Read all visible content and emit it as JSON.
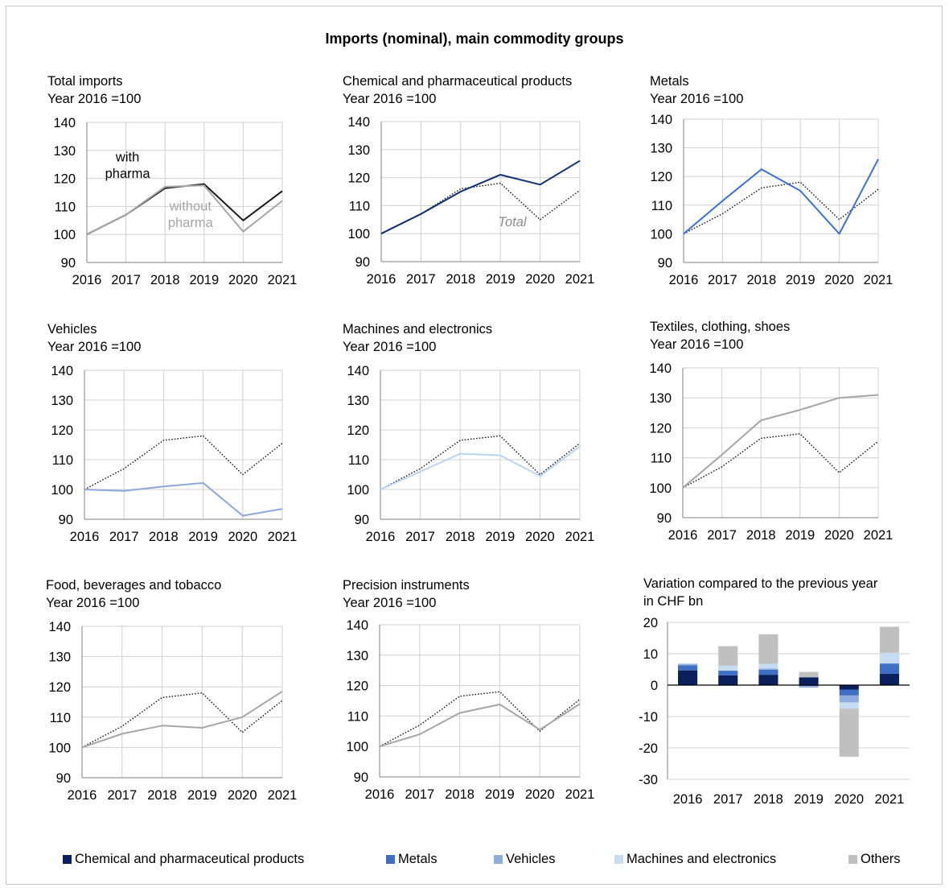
{
  "title": "Imports (nominal), main commodity groups",
  "colors": {
    "black": "#1a1a1a",
    "gray": "#a6a6a6",
    "navy": "#0d2f6e",
    "blue": "#3d6fdb",
    "lightblue": "#8ba8d8",
    "paleblue": "#b9d5ee",
    "othersgray": "#bfbfbf",
    "chem_bar": "#0a1f5c",
    "metals_bar": "#3e6fc4",
    "vehicles_bar": "#8eadde",
    "machines_bar": "#c6dcf1",
    "others_bar": "#c0c0c0",
    "grid": "#d0d0d0",
    "axis": "#808080"
  },
  "chart_data": [
    {
      "type": "line",
      "title": "Total imports",
      "subtitle": "Year 2016 =100",
      "x": [
        "2016",
        "2017",
        "2018",
        "2019",
        "2020",
        "2021"
      ],
      "ylim": [
        90,
        140
      ],
      "yticks": [
        90,
        100,
        110,
        120,
        130,
        140
      ],
      "series": [
        {
          "name": "with pharma",
          "values": [
            100,
            107,
            116.5,
            118,
            105,
            115.5
          ],
          "color": "#1a1a1a",
          "style": "solid"
        },
        {
          "name": "without pharma",
          "values": [
            100,
            107,
            117,
            117.5,
            101,
            112
          ],
          "color": "#a6a6a6",
          "style": "solid"
        }
      ],
      "annotations": [
        {
          "text": "with",
          "series": 0
        },
        {
          "text": "pharma",
          "series": 0
        },
        {
          "text": "without",
          "series": 1
        },
        {
          "text": "pharma",
          "series": 1
        }
      ]
    },
    {
      "type": "line",
      "title": "Chemical and pharmaceutical products",
      "subtitle": "Year 2016 =100",
      "x": [
        "2016",
        "2017",
        "2018",
        "2019",
        "2020",
        "2021"
      ],
      "ylim": [
        90,
        140
      ],
      "yticks": [
        90,
        100,
        110,
        120,
        130,
        140
      ],
      "series": [
        {
          "values": [
            100,
            107,
            116,
            118,
            105,
            115.5
          ],
          "color": "#1a1a1a",
          "style": "dotted"
        },
        {
          "values": [
            100,
            107,
            115,
            121,
            117.5,
            126
          ],
          "color": "#0d2f6e",
          "style": "solid"
        }
      ],
      "annotations": [
        {
          "text": "Total"
        }
      ]
    },
    {
      "type": "line",
      "title": "Metals",
      "subtitle": "Year 2016 =100",
      "x": [
        "2016",
        "2017",
        "2018",
        "2019",
        "2020",
        "2021"
      ],
      "ylim": [
        90,
        140
      ],
      "yticks": [
        90,
        100,
        110,
        120,
        130,
        140
      ],
      "series": [
        {
          "values": [
            100,
            107,
            116,
            118,
            105,
            115.5
          ],
          "color": "#1a1a1a",
          "style": "dotted"
        },
        {
          "values": [
            100,
            111.5,
            122.5,
            115,
            100,
            126
          ],
          "color": "#3d6fdb",
          "style": "solid"
        }
      ]
    },
    {
      "type": "line",
      "title": "Vehicles",
      "subtitle": "Year 2016 =100",
      "x": [
        "2016",
        "2017",
        "2018",
        "2019",
        "2020",
        "2021"
      ],
      "ylim": [
        90,
        140
      ],
      "yticks": [
        90,
        100,
        110,
        120,
        130,
        140
      ],
      "series": [
        {
          "values": [
            100,
            107,
            116.5,
            118,
            105,
            115.5
          ],
          "color": "#1a1a1a",
          "style": "dotted"
        },
        {
          "values": [
            100,
            99.5,
            101,
            102.2,
            91.2,
            93.5
          ],
          "color": "#8ba8d8",
          "style": "solid"
        }
      ]
    },
    {
      "type": "line",
      "title": "Machines and electronics",
      "subtitle": "Year 2016 =100",
      "x": [
        "2016",
        "2017",
        "2018",
        "2019",
        "2020",
        "2021"
      ],
      "ylim": [
        90,
        140
      ],
      "yticks": [
        90,
        100,
        110,
        120,
        130,
        140
      ],
      "series": [
        {
          "values": [
            100,
            107,
            116.5,
            118,
            105,
            115.5
          ],
          "color": "#1a1a1a",
          "style": "dotted"
        },
        {
          "values": [
            100,
            106,
            112,
            111.5,
            104.5,
            114.5
          ],
          "color": "#b9d5ee",
          "style": "solid"
        }
      ]
    },
    {
      "type": "line",
      "title": "Textiles, clothing, shoes",
      "subtitle": "Year 2016 =100",
      "x": [
        "2016",
        "2017",
        "2018",
        "2019",
        "2020",
        "2021"
      ],
      "ylim": [
        90,
        140
      ],
      "yticks": [
        90,
        100,
        110,
        120,
        130,
        140
      ],
      "series": [
        {
          "values": [
            100,
            107,
            116.5,
            118,
            105,
            115.5
          ],
          "color": "#1a1a1a",
          "style": "dotted"
        },
        {
          "values": [
            100,
            111,
            122.5,
            126,
            130,
            131
          ],
          "color": "#a6a6a6",
          "style": "solid"
        }
      ]
    },
    {
      "type": "line",
      "title": "Food, beverages and tobacco",
      "subtitle": "Year 2016 =100",
      "x": [
        "2016",
        "2017",
        "2018",
        "2019",
        "2020",
        "2021"
      ],
      "ylim": [
        90,
        140
      ],
      "yticks": [
        90,
        100,
        110,
        120,
        130,
        140
      ],
      "series": [
        {
          "values": [
            100,
            107,
            116.5,
            118,
            105,
            115.5
          ],
          "color": "#1a1a1a",
          "style": "dotted"
        },
        {
          "values": [
            100,
            104.5,
            107.2,
            106.5,
            110,
            118.5
          ],
          "color": "#a6a6a6",
          "style": "solid"
        }
      ]
    },
    {
      "type": "line",
      "title": "Precision instruments",
      "subtitle": "Year 2016 =100",
      "x": [
        "2016",
        "2017",
        "2018",
        "2019",
        "2020",
        "2021"
      ],
      "ylim": [
        90,
        140
      ],
      "yticks": [
        90,
        100,
        110,
        120,
        130,
        140
      ],
      "series": [
        {
          "values": [
            100,
            107,
            116.5,
            118,
            105,
            115.5
          ],
          "color": "#1a1a1a",
          "style": "dotted"
        },
        {
          "values": [
            100,
            104,
            111,
            113.8,
            105.5,
            114
          ],
          "color": "#a6a6a6",
          "style": "solid"
        }
      ]
    },
    {
      "type": "bar",
      "stacked": true,
      "title": "Variation compared to the previous year",
      "subtitle": "in CHF bn",
      "categories": [
        "2016",
        "2017",
        "2018",
        "2019",
        "2020",
        "2021"
      ],
      "ylim": [
        -30,
        20
      ],
      "yticks": [
        -30,
        -20,
        -10,
        0,
        10,
        20
      ],
      "series": [
        {
          "name": "Chemical and pharmaceutical products",
          "values": [
            4.7,
            3.1,
            3.3,
            2.5,
            -1.5,
            3.6
          ],
          "color": "#0a1f5c"
        },
        {
          "name": "Metals",
          "values": [
            1.6,
            1.5,
            1.6,
            -0.3,
            -1.8,
            3.2
          ],
          "color": "#3e6fc4"
        },
        {
          "name": "Vehicles",
          "values": [
            0.4,
            -0.2,
            0.4,
            -0.5,
            -2.2,
            0.2
          ],
          "color": "#8eadde"
        },
        {
          "name": "Machines and electronics",
          "values": [
            0.3,
            1.6,
            1.5,
            0.0,
            -2.0,
            3.3
          ],
          "color": "#c6dcf1"
        },
        {
          "name": "Others",
          "values": [
            0.0,
            6.2,
            9.4,
            1.7,
            -15.3,
            8.3
          ],
          "color": "#c0c0c0"
        }
      ]
    }
  ],
  "legend": [
    {
      "label": "Chemical and pharmaceutical products",
      "color": "#0a1f5c"
    },
    {
      "label": "Metals",
      "color": "#3e6fc4"
    },
    {
      "label": "Vehicles",
      "color": "#8eadde"
    },
    {
      "label": "Machines and electronics",
      "color": "#c6dcf1"
    },
    {
      "label": "Others",
      "color": "#c0c0c0"
    }
  ]
}
